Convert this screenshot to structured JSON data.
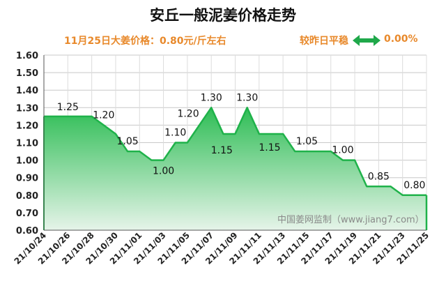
{
  "header": {
    "title": "安丘一般泥姜价格走势",
    "price_note": "11月25日大姜价格：0.80元/斤左右",
    "compare_label": "较昨日平稳",
    "change_pct": "0.00%"
  },
  "watermark": "中国姜网监制（www.jiang7.com）",
  "colors": {
    "accent_orange": "#e8892b",
    "series_line": "#1fb24a",
    "fill_top": "#2ebd55",
    "fill_bottom": "#e6f4e9",
    "arrow_green": "#1fa84a"
  },
  "chart_data": {
    "type": "area",
    "title": "安丘一般泥姜价格走势",
    "xlabel": "",
    "ylabel": "",
    "ylim": [
      0.6,
      1.6
    ],
    "yticks": [
      "0.60",
      "0.70",
      "0.80",
      "0.90",
      "1.00",
      "1.10",
      "1.20",
      "1.30",
      "1.40",
      "1.50",
      "1.60"
    ],
    "xtick_labels": [
      "21/10/24",
      "21/10/26",
      "21/10/28",
      "21/10/30",
      "21/11/01",
      "21/11/03",
      "21/11/05",
      "21/11/07",
      "21/11/09",
      "21/11/11",
      "21/11/13",
      "21/11/15",
      "21/11/17",
      "21/11/19",
      "21/11/21",
      "21/11/23",
      "21/11/25"
    ],
    "x": [
      "10/24",
      "10/25",
      "10/26",
      "10/27",
      "10/28",
      "10/29",
      "10/30",
      "10/31",
      "11/01",
      "11/02",
      "11/03",
      "11/04",
      "11/05",
      "11/06",
      "11/07",
      "11/08",
      "11/09",
      "11/10",
      "11/11",
      "11/12",
      "11/13",
      "11/14",
      "11/15",
      "11/16",
      "11/17",
      "11/18",
      "11/19",
      "11/20",
      "11/21",
      "11/22",
      "11/23",
      "11/24",
      "11/25"
    ],
    "values": [
      1.25,
      1.25,
      1.25,
      1.25,
      1.25,
      1.2,
      1.15,
      1.05,
      1.05,
      1.0,
      1.0,
      1.1,
      1.1,
      1.2,
      1.3,
      1.15,
      1.15,
      1.3,
      1.15,
      1.15,
      1.15,
      1.05,
      1.05,
      1.05,
      1.05,
      1.0,
      1.0,
      0.85,
      0.85,
      0.85,
      0.8,
      0.8,
      0.8
    ],
    "data_labels": [
      {
        "index": 2,
        "text": "1.25"
      },
      {
        "index": 5,
        "text": "1.20"
      },
      {
        "index": 7,
        "text": "1.05"
      },
      {
        "index": 10,
        "text": "1.00"
      },
      {
        "index": 11,
        "text": "1.10"
      },
      {
        "index": 13,
        "text": "1.20"
      },
      {
        "index": 14,
        "text": "1.30"
      },
      {
        "index": 15,
        "text": "1.15"
      },
      {
        "index": 17,
        "text": "1.30"
      },
      {
        "index": 19,
        "text": "1.15"
      },
      {
        "index": 22,
        "text": "1.05"
      },
      {
        "index": 25,
        "text": "1.00"
      },
      {
        "index": 28,
        "text": "0.85"
      },
      {
        "index": 31,
        "text": "0.80"
      }
    ],
    "grid": true
  }
}
